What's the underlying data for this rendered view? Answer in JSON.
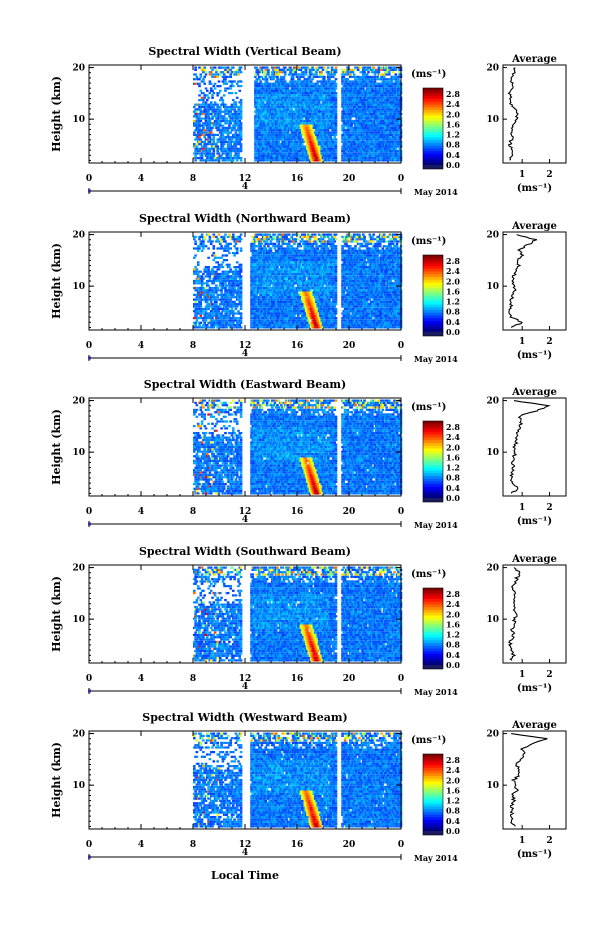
{
  "figure": {
    "date_label": "May 2014",
    "xlabel": "Local Time",
    "colorbar_unit": "(ms⁻¹)",
    "average_title": "Average",
    "average_xlabel": "(ms⁻¹)",
    "ylabel": "Height (km)"
  },
  "chart_data": [
    {
      "type": "heatmap",
      "title": "Spectral Width (Vertical Beam)",
      "xlabel": "Local Time",
      "ylabel": "Height (km)",
      "x_ticks": [
        "0",
        "4",
        "8",
        "12",
        "16",
        "20",
        "0"
      ],
      "x_range": [
        0,
        24
      ],
      "date_tick": "4",
      "y_ticks": [
        10,
        20
      ],
      "y_range": [
        1.5,
        20.5
      ],
      "colorbar": {
        "unit": "(ms⁻¹)",
        "ticks": [
          "2.8",
          "2.4",
          "2.0",
          "1.6",
          "1.2",
          "0.8",
          "0.4",
          "0.0"
        ],
        "range": [
          0,
          2.8
        ]
      },
      "gaps_hours": [
        [
          11.6,
          12.6
        ],
        [
          19.0,
          19.4
        ]
      ],
      "data_start_hour": 8.0,
      "peak": {
        "hour": 17.0,
        "value": 2.6,
        "height_top_km": 9
      },
      "average": {
        "title": "Average",
        "x_ticks": [
          "1",
          "2"
        ],
        "y_ticks": [
          10,
          20
        ],
        "xlim": [
          0.3,
          2.6
        ],
        "heights": [
          2,
          3,
          4,
          5,
          6,
          7,
          8,
          9,
          10,
          11,
          12,
          13,
          14,
          15,
          16,
          17,
          18,
          19,
          20
        ],
        "values": [
          0.55,
          0.6,
          0.6,
          0.55,
          0.6,
          0.65,
          0.6,
          0.7,
          0.75,
          0.9,
          0.7,
          0.6,
          0.6,
          0.55,
          0.6,
          0.65,
          0.6,
          0.7,
          0.75
        ]
      }
    },
    {
      "type": "heatmap",
      "title": "Spectral Width (Northward Beam)",
      "xlabel": "Local Time",
      "ylabel": "Height (km)",
      "x_ticks": [
        "0",
        "4",
        "8",
        "12",
        "16",
        "20",
        "0"
      ],
      "x_range": [
        0,
        24
      ],
      "date_tick": "4",
      "y_ticks": [
        10,
        20
      ],
      "y_range": [
        1.5,
        20.5
      ],
      "colorbar": {
        "unit": "(ms⁻¹)",
        "ticks": [
          "2.8",
          "2.4",
          "2.0",
          "1.6",
          "1.2",
          "0.8",
          "0.4",
          "0.0"
        ],
        "range": [
          0,
          2.8
        ]
      },
      "gaps_hours": [
        [
          11.6,
          12.3
        ],
        [
          19.0,
          19.4
        ]
      ],
      "data_start_hour": 8.0,
      "peak": {
        "hour": 17.0,
        "value": 2.7,
        "height_top_km": 9
      },
      "average": {
        "title": "Average",
        "x_ticks": [
          "1",
          "2"
        ],
        "y_ticks": [
          10,
          20
        ],
        "xlim": [
          0.3,
          2.6
        ],
        "heights": [
          2,
          3,
          4,
          5,
          6,
          7,
          8,
          9,
          10,
          11,
          12,
          13,
          14,
          15,
          16,
          17,
          18,
          19,
          20
        ],
        "values": [
          0.65,
          1.0,
          0.6,
          0.55,
          0.6,
          0.6,
          0.65,
          0.7,
          0.75,
          0.65,
          0.7,
          0.75,
          0.9,
          0.8,
          1.0,
          0.9,
          1.2,
          1.5,
          0.8
        ]
      }
    },
    {
      "type": "heatmap",
      "title": "Spectral Width (Eastward Beam)",
      "xlabel": "Local Time",
      "ylabel": "Height (km)",
      "x_ticks": [
        "0",
        "4",
        "8",
        "12",
        "16",
        "20",
        "0"
      ],
      "x_range": [
        0,
        24
      ],
      "date_tick": "4",
      "y_ticks": [
        10,
        20
      ],
      "y_range": [
        1.5,
        20.5
      ],
      "colorbar": {
        "unit": "(ms⁻¹)",
        "ticks": [
          "2.8",
          "2.4",
          "2.0",
          "1.6",
          "1.2",
          "0.8",
          "0.4",
          "0.0"
        ],
        "range": [
          0,
          2.8
        ]
      },
      "gaps_hours": [
        [
          11.6,
          12.3
        ],
        [
          19.0,
          19.4
        ]
      ],
      "data_start_hour": 8.0,
      "peak": {
        "hour": 17.0,
        "value": 2.7,
        "height_top_km": 9
      },
      "average": {
        "title": "Average",
        "x_ticks": [
          "1",
          "2"
        ],
        "y_ticks": [
          10,
          20
        ],
        "xlim": [
          0.3,
          2.6
        ],
        "heights": [
          2,
          3,
          4,
          5,
          6,
          7,
          8,
          9,
          10,
          11,
          12,
          13,
          14,
          15,
          16,
          17,
          18,
          19,
          20
        ],
        "values": [
          0.6,
          0.9,
          0.6,
          0.65,
          0.6,
          0.7,
          0.65,
          0.7,
          0.75,
          0.7,
          0.8,
          0.8,
          0.85,
          0.9,
          1.0,
          0.9,
          1.5,
          2.0,
          0.7
        ]
      }
    },
    {
      "type": "heatmap",
      "title": "Spectral Width (Southward Beam)",
      "xlabel": "Local Time",
      "ylabel": "Height (km)",
      "x_ticks": [
        "0",
        "4",
        "8",
        "12",
        "16",
        "20",
        "0"
      ],
      "x_range": [
        0,
        24
      ],
      "date_tick": "4",
      "y_ticks": [
        10,
        20
      ],
      "y_range": [
        1.5,
        20.5
      ],
      "colorbar": {
        "unit": "(ms⁻¹)",
        "ticks": [
          "2.8",
          "2.4",
          "2.0",
          "1.6",
          "1.2",
          "0.8",
          "0.4",
          "0.0"
        ],
        "range": [
          0,
          2.8
        ]
      },
      "gaps_hours": [
        [
          11.6,
          12.3
        ],
        [
          19.0,
          19.4
        ]
      ],
      "data_start_hour": 8.0,
      "peak": {
        "hour": 17.0,
        "value": 2.6,
        "height_top_km": 9
      },
      "average": {
        "title": "Average",
        "x_ticks": [
          "1",
          "2"
        ],
        "y_ticks": [
          10,
          20
        ],
        "xlim": [
          0.3,
          2.6
        ],
        "heights": [
          2,
          3,
          4,
          5,
          6,
          7,
          8,
          9,
          10,
          11,
          12,
          13,
          14,
          15,
          16,
          17,
          18,
          19,
          20
        ],
        "values": [
          0.6,
          0.7,
          0.6,
          0.55,
          0.6,
          0.7,
          0.6,
          0.75,
          0.7,
          0.8,
          0.7,
          0.65,
          0.75,
          0.7,
          0.65,
          0.75,
          0.8,
          0.9,
          0.7
        ]
      }
    },
    {
      "type": "heatmap",
      "title": "Spectral Width (Westward Beam)",
      "xlabel": "Local Time",
      "ylabel": "Height (km)",
      "x_ticks": [
        "0",
        "4",
        "8",
        "12",
        "16",
        "20",
        "0"
      ],
      "x_range": [
        0,
        24
      ],
      "date_tick": "4",
      "y_ticks": [
        10,
        20
      ],
      "y_range": [
        1.5,
        20.5
      ],
      "colorbar": {
        "unit": "(ms⁻¹)",
        "ticks": [
          "2.8",
          "2.4",
          "2.0",
          "1.6",
          "1.2",
          "0.8",
          "0.4",
          "0.0"
        ],
        "range": [
          0,
          2.8
        ]
      },
      "gaps_hours": [
        [
          11.6,
          12.3
        ],
        [
          19.0,
          19.4
        ]
      ],
      "data_start_hour": 8.0,
      "peak": {
        "hour": 17.0,
        "value": 2.6,
        "height_top_km": 9
      },
      "average": {
        "title": "Average",
        "x_ticks": [
          "1",
          "2"
        ],
        "y_ticks": [
          10,
          20
        ],
        "xlim": [
          0.3,
          2.6
        ],
        "heights": [
          2,
          3,
          4,
          5,
          6,
          7,
          8,
          9,
          10,
          11,
          12,
          13,
          14,
          15,
          16,
          17,
          18,
          19,
          20
        ],
        "values": [
          0.7,
          0.6,
          0.6,
          0.65,
          0.6,
          0.7,
          0.65,
          0.8,
          0.75,
          0.7,
          0.9,
          0.85,
          0.8,
          0.9,
          1.1,
          1.0,
          1.3,
          1.9,
          0.6
        ]
      }
    }
  ]
}
